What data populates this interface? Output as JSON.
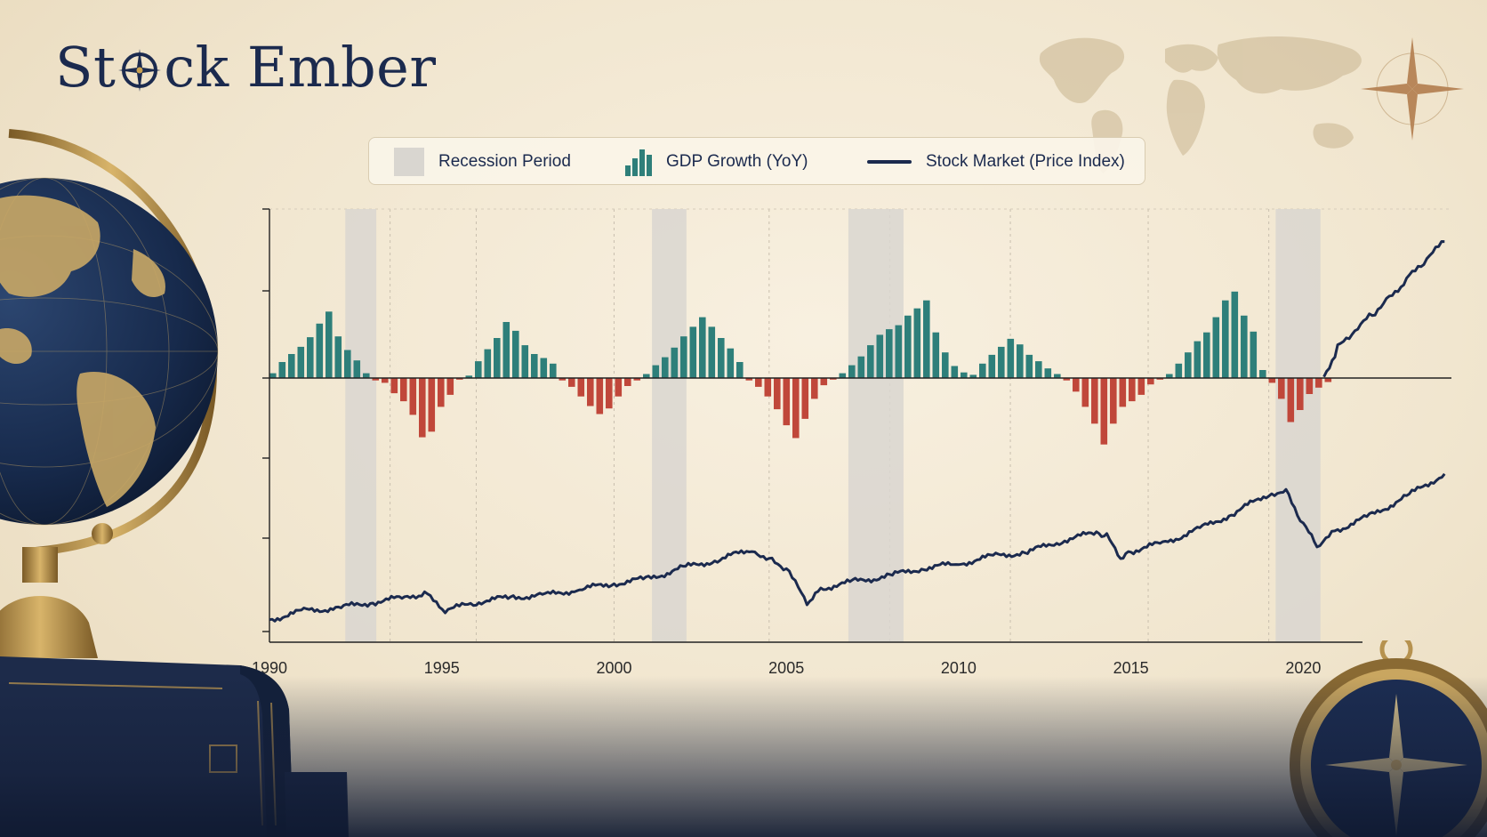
{
  "brand": {
    "name_part1": "St",
    "name_part2": "ck Ember",
    "compass_icon": "compass-rose-icon"
  },
  "legend": {
    "recession_label": "Recession Period",
    "gdp_label": "GDP Growth (YoY)",
    "stock_label": "Stock Market (Price Index)"
  },
  "decor": {
    "globe": "globe-icon",
    "books": "book-stack-icon",
    "compass": "pocket-compass-icon",
    "world_map": "world-map-icon",
    "compass_rose": "compass-rose-icon"
  },
  "colors": {
    "positive": "#2e7f7a",
    "negative": "#c0473a",
    "line": "#1b2a4e",
    "recession": "#d9d6d0",
    "axis": "#222222"
  },
  "chart_data": {
    "type": "bar+line",
    "x_axis": {
      "ticks": [
        "1990",
        "1995",
        "2000",
        "2005",
        "2010",
        "2015",
        "2020"
      ],
      "range": [
        1990,
        2024.3
      ]
    },
    "recessions": [
      [
        1992.2,
        1993.1
      ],
      [
        2001.1,
        2002.1
      ],
      [
        2006.8,
        2008.4
      ],
      [
        2019.2,
        2020.5
      ]
    ],
    "gdp_bars": {
      "x_start": 1990,
      "step": 0.271,
      "values": [
        0.6,
        2.0,
        3.0,
        3.9,
        5.1,
        6.8,
        8.3,
        5.2,
        3.5,
        2.2,
        0.6,
        -0.3,
        -0.6,
        -1.9,
        -2.9,
        -4.6,
        -7.4,
        -6.7,
        -3.6,
        -2.1,
        -0.2,
        0.3,
        2.1,
        3.6,
        5.0,
        7.0,
        5.9,
        4.1,
        3.0,
        2.5,
        1.8,
        -0.3,
        -1.1,
        -2.3,
        -3.5,
        -4.5,
        -3.8,
        -2.3,
        -1.0,
        -0.3,
        0.5,
        1.6,
        2.6,
        3.8,
        5.2,
        6.4,
        7.6,
        6.4,
        5.0,
        3.7,
        2.0,
        -0.3,
        -1.1,
        -2.3,
        -3.9,
        -5.9,
        -7.5,
        -5.1,
        -2.6,
        -0.9,
        -0.2,
        0.6,
        1.6,
        2.7,
        4.1,
        5.4,
        6.1,
        6.6,
        7.8,
        8.7,
        9.7,
        5.7,
        3.2,
        1.5,
        0.7,
        0.4,
        1.8,
        2.9,
        3.9,
        4.9,
        4.2,
        2.9,
        2.1,
        1.2,
        0.5,
        -0.3,
        -1.7,
        -3.6,
        -5.7,
        -8.3,
        -5.7,
        -3.6,
        -2.9,
        -2.1,
        -0.8,
        -0.2,
        0.5,
        1.8,
        3.2,
        4.6,
        5.7,
        7.6,
        9.7,
        10.8,
        7.8,
        5.8,
        1.0,
        -0.6,
        -2.6,
        -5.5,
        -4.0,
        -2.0,
        -1.2,
        -0.5
      ]
    },
    "stock_series": {
      "name": "Stock Market (Price Index)",
      "points": [
        [
          1990,
          0.03
        ],
        [
          1991,
          0.12
        ],
        [
          1992,
          0.15
        ],
        [
          1993,
          0.21
        ],
        [
          1994,
          0.26
        ],
        [
          1994.5,
          0.3
        ],
        [
          1995.1,
          0.12
        ],
        [
          1996,
          0.21
        ],
        [
          1997,
          0.26
        ],
        [
          1998,
          0.28
        ],
        [
          1999,
          0.34
        ],
        [
          2000,
          0.4
        ],
        [
          2001,
          0.45
        ],
        [
          2002,
          0.56
        ],
        [
          2003,
          0.64
        ],
        [
          2004,
          0.75
        ],
        [
          2004.5,
          0.65
        ],
        [
          2005,
          0.55
        ],
        [
          2005.6,
          0.2
        ],
        [
          2006,
          0.35
        ],
        [
          2007,
          0.42
        ],
        [
          2008,
          0.48
        ],
        [
          2009,
          0.56
        ],
        [
          2010,
          0.6
        ],
        [
          2011,
          0.68
        ],
        [
          2012,
          0.72
        ],
        [
          2013,
          0.84
        ],
        [
          2014,
          0.92
        ],
        [
          2014.3,
          0.88
        ],
        [
          2014.7,
          0.65
        ],
        [
          2015,
          0.73
        ],
        [
          2016,
          0.82
        ],
        [
          2017,
          0.96
        ],
        [
          2018,
          1.12
        ],
        [
          2019,
          1.32
        ],
        [
          2019.5,
          1.35
        ],
        [
          2020,
          1.0
        ],
        [
          2020.4,
          0.78
        ],
        [
          2021,
          0.95
        ],
        [
          2022,
          1.1
        ],
        [
          2023,
          1.29
        ],
        [
          2024.1,
          1.52
        ]
      ]
    },
    "stock_series_upper": {
      "points": [
        [
          2020.6,
          0.01
        ],
        [
          2021,
          0.26
        ],
        [
          2021.5,
          0.4
        ],
        [
          2022,
          0.55
        ],
        [
          2022.5,
          0.7
        ],
        [
          2023,
          0.85
        ],
        [
          2023.5,
          1.0
        ],
        [
          2024.1,
          1.18
        ]
      ]
    },
    "grid": "vertical-dotted"
  }
}
